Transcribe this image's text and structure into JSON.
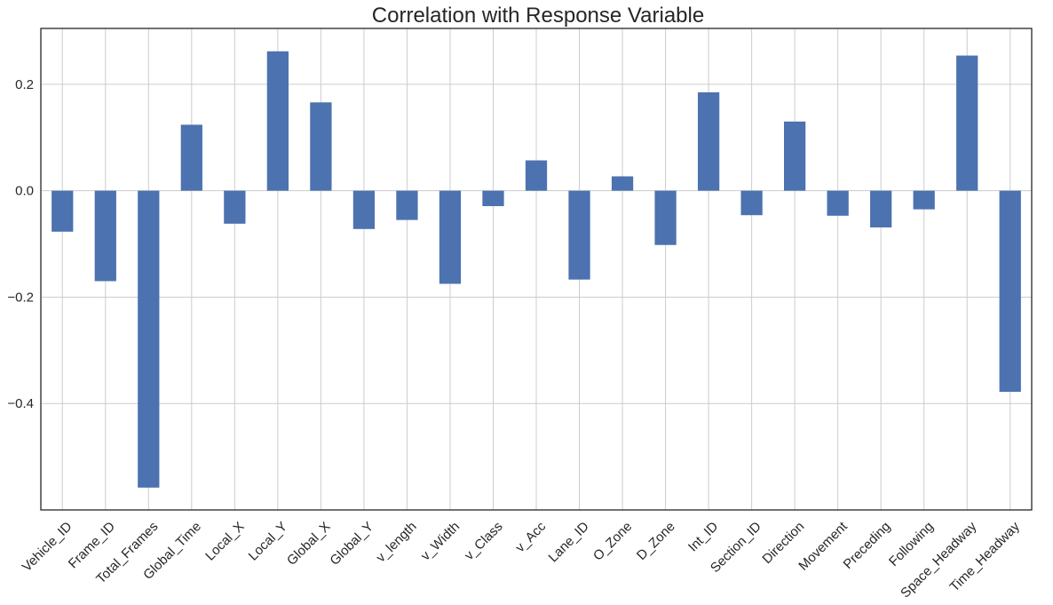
{
  "chart_data": {
    "type": "bar",
    "title": "Correlation with Response Variable",
    "xlabel": "",
    "ylabel": "",
    "categories": [
      "Vehicle_ID",
      "Frame_ID",
      "Total_Frames",
      "Global_Time",
      "Local_X",
      "Local_Y",
      "Global_X",
      "Global_Y",
      "v_length",
      "v_Width",
      "v_Class",
      "v_Acc",
      "Lane_ID",
      "O_Zone",
      "D_Zone",
      "Int_ID",
      "Section_ID",
      "Direction",
      "Movement",
      "Preceding",
      "Following",
      "Space_Headway",
      "Time_Headway"
    ],
    "values": [
      -0.077,
      -0.17,
      -0.558,
      0.124,
      -0.062,
      0.262,
      0.166,
      -0.072,
      -0.055,
      -0.175,
      -0.029,
      0.057,
      -0.167,
      0.027,
      -0.102,
      0.185,
      -0.046,
      0.13,
      -0.047,
      -0.069,
      -0.035,
      0.254,
      -0.378
    ],
    "ylim": [
      -0.6,
      0.305
    ],
    "yticks": [
      -0.4,
      -0.2,
      0.0,
      0.2
    ],
    "ytick_labels": [
      "−0.4",
      "−0.2",
      "0.0",
      "0.2"
    ],
    "grid": true,
    "bar_color": "#4c72b0"
  }
}
